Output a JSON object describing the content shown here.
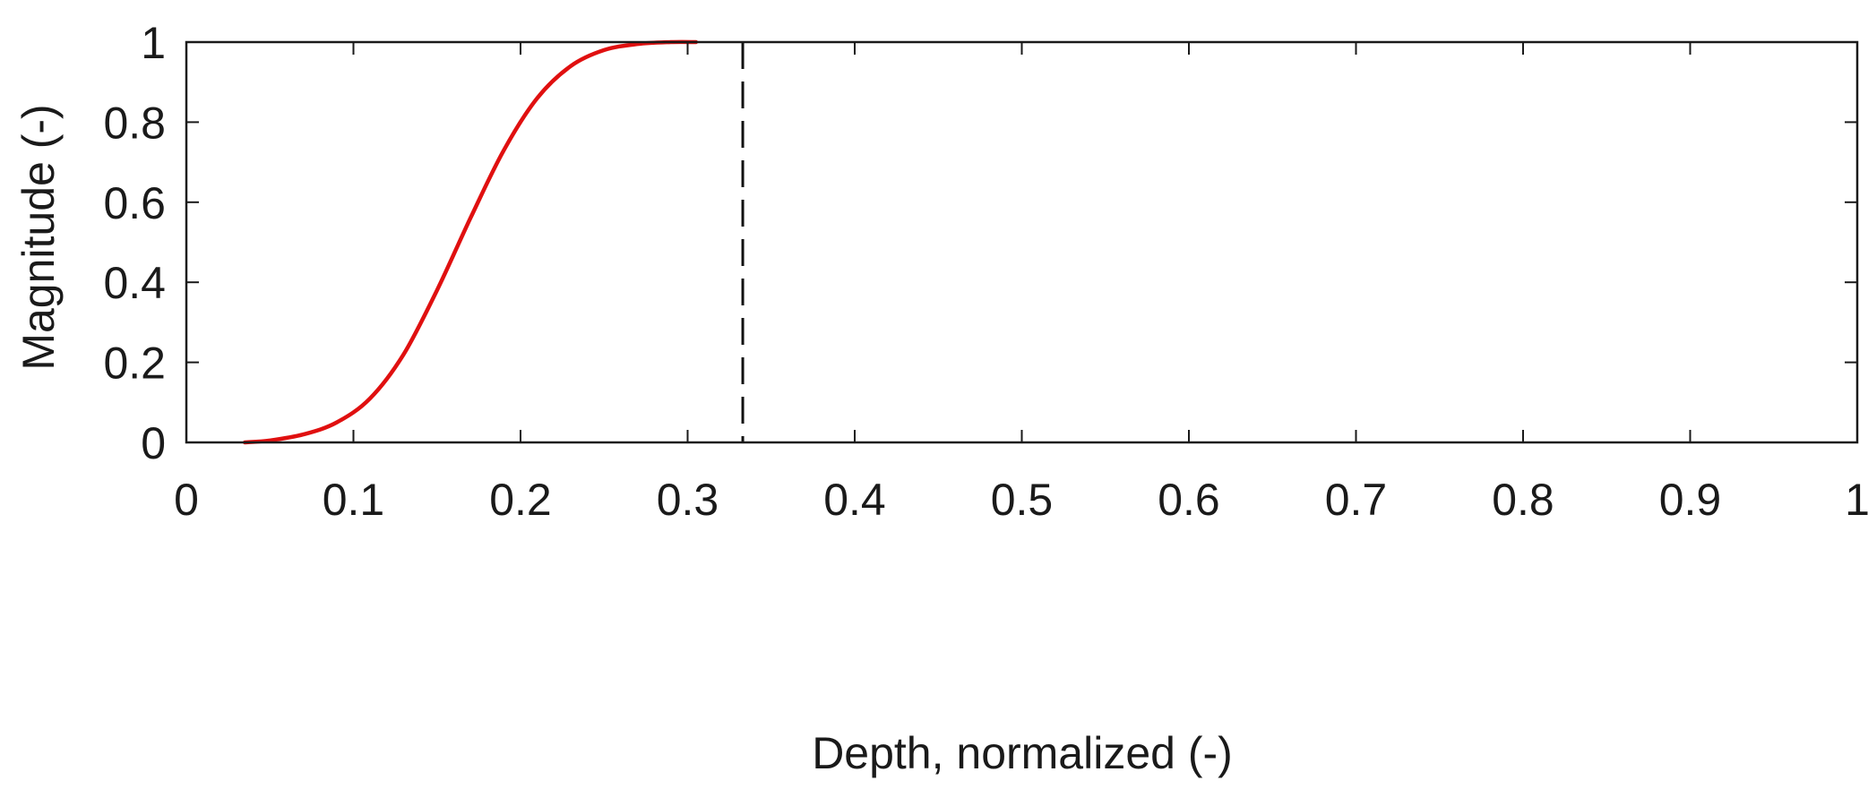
{
  "chart_data": {
    "type": "line",
    "title": "",
    "xlabel": "Depth, normalized (-)",
    "ylabel": "Magnitude (-)",
    "xlim": [
      0,
      1
    ],
    "ylim": [
      0,
      1
    ],
    "x_ticks": [
      0,
      0.1,
      0.2,
      0.3,
      0.4,
      0.5,
      0.6,
      0.7,
      0.8,
      0.9,
      1
    ],
    "x_tick_labels": [
      "0",
      "0.1",
      "0.2",
      "0.3",
      "0.4",
      "0.5",
      "0.6",
      "0.7",
      "0.8",
      "0.9",
      "1"
    ],
    "y_ticks": [
      0,
      0.2,
      0.4,
      0.6,
      0.8,
      1
    ],
    "y_tick_labels": [
      "0",
      "0.2",
      "0.4",
      "0.6",
      "0.8",
      "1"
    ],
    "grid": false,
    "series": [
      {
        "color": "#e01010",
        "x": [
          0.035,
          0.05,
          0.07,
          0.09,
          0.11,
          0.13,
          0.15,
          0.17,
          0.19,
          0.21,
          0.23,
          0.25,
          0.27,
          0.29,
          0.305
        ],
        "y": [
          0.0,
          0.005,
          0.02,
          0.05,
          0.11,
          0.22,
          0.38,
          0.56,
          0.73,
          0.86,
          0.94,
          0.98,
          0.995,
          1.0,
          1.0
        ]
      }
    ],
    "vlines": [
      {
        "x": 0.333,
        "color": "#111111",
        "style": "dashed"
      }
    ]
  }
}
